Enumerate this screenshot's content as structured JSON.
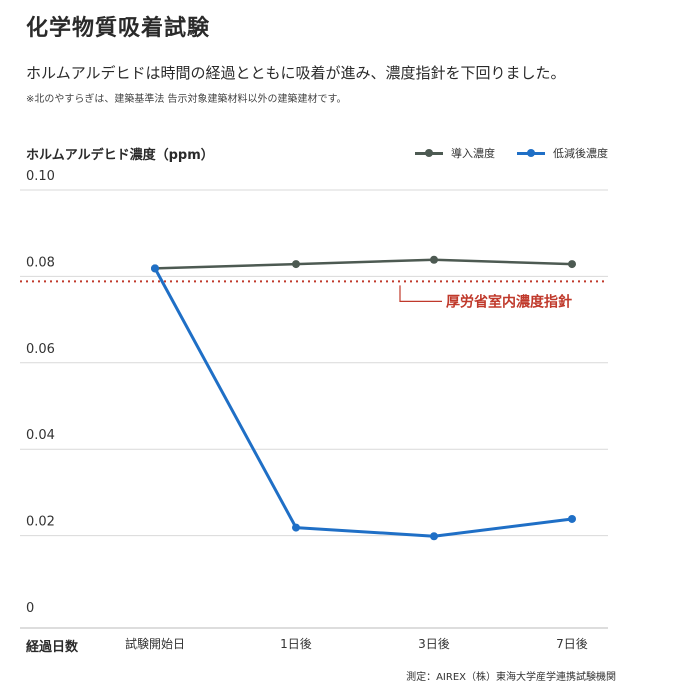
{
  "header": {
    "title": "化学物質吸着試験",
    "subtitle": "ホルムアルデヒドは時間の経過とともに吸着が進み、濃度指針を下回りました。",
    "note": "※北のやすらぎは、建築基準法 告示対象建築材料以外の建築建材です。"
  },
  "footer": {
    "source": "測定：AIREX（株）東海大学産学連携試験機関"
  },
  "chart_data": {
    "type": "line",
    "ylabel": "ホルムアルデヒド濃度（ppm）",
    "xlabel": "経過日数",
    "categories": [
      "試験開始日",
      "1日後",
      "3日後",
      "7日後"
    ],
    "ylim": [
      0,
      0.1
    ],
    "yticks": [
      0,
      0.02,
      0.04,
      0.06,
      0.08,
      0.1
    ],
    "ytick_labels": [
      "0",
      "0.02",
      "0.04",
      "0.06",
      "0.08",
      "0.10"
    ],
    "grid": true,
    "legend_position": "top-right",
    "series": [
      {
        "name": "導入濃度",
        "values": [
          0.08,
          0.081,
          0.082,
          0.081
        ],
        "color": "#4d5a52"
      },
      {
        "name": "低減後濃度",
        "values": [
          0.08,
          0.02,
          0.018,
          0.022
        ],
        "color": "#1f6fc6"
      }
    ],
    "reference_line": {
      "label": "厚労省室内濃度指針",
      "value": 0.077,
      "color": "#c0392b"
    }
  }
}
